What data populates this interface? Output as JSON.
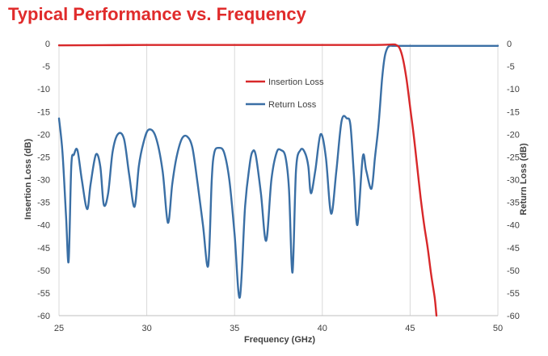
{
  "chart_data": {
    "type": "line",
    "title": "Typical Performance vs. Frequency",
    "xlabel": "Frequency (GHz)",
    "ylabel_left": "Insertion Loss (dB)",
    "ylabel_right": "Return Loss (dB)",
    "xlim": [
      25,
      50
    ],
    "ylim": [
      -60,
      0
    ],
    "x_ticks": [
      "25",
      "30",
      "35",
      "40",
      "45",
      "50"
    ],
    "y_ticks": [
      "0",
      "-5",
      "-10",
      "-15",
      "-20",
      "-25",
      "-30",
      "-35",
      "-40",
      "-45",
      "-50",
      "-55",
      "-60"
    ],
    "grid": "vertical",
    "legend_position": "upper-middle",
    "series": [
      {
        "name": "Insertion Loss",
        "color": "#d8282a",
        "axis": "left",
        "x": [
          25.0,
          30.0,
          35.0,
          40.0,
          43.0,
          44.0,
          44.2,
          44.4,
          44.6,
          44.8,
          45.0,
          45.2,
          45.4,
          45.6,
          45.8,
          46.0,
          46.2,
          46.4,
          46.5
        ],
        "y": [
          -0.4,
          -0.3,
          -0.3,
          -0.3,
          -0.3,
          -0.2,
          -0.3,
          -1.0,
          -3.5,
          -8.0,
          -14.0,
          -20.0,
          -27.0,
          -34.0,
          -40.0,
          -45.0,
          -51.0,
          -56.0,
          -60.0
        ]
      },
      {
        "name": "Return Loss",
        "color": "#3a6fa5",
        "axis": "right",
        "x": [
          25.0,
          25.2,
          25.4,
          25.55,
          25.7,
          25.85,
          26.05,
          26.3,
          26.6,
          26.8,
          27.1,
          27.35,
          27.55,
          27.8,
          28.05,
          28.35,
          28.7,
          29.0,
          29.3,
          29.55,
          29.8,
          30.1,
          30.5,
          30.9,
          31.2,
          31.45,
          31.7,
          32.0,
          32.3,
          32.6,
          32.9,
          33.2,
          33.5,
          33.7,
          33.85,
          34.1,
          34.4,
          34.7,
          35.0,
          35.3,
          35.6,
          35.85,
          36.0,
          36.2,
          36.5,
          36.8,
          37.1,
          37.4,
          37.65,
          37.9,
          38.1,
          38.3,
          38.5,
          38.75,
          39.0,
          39.2,
          39.35,
          39.6,
          39.9,
          40.2,
          40.5,
          40.8,
          41.1,
          41.4,
          41.6,
          41.8,
          42.0,
          42.3,
          42.5,
          42.8,
          43.0,
          43.2,
          43.4,
          43.55,
          43.7,
          43.85,
          44.0,
          44.2,
          44.4,
          44.6,
          44.8,
          45.0,
          45.5,
          46.0,
          47.0,
          48.0,
          49.0,
          50.0
        ],
        "y": [
          -16.5,
          -24.0,
          -38.0,
          -48.0,
          -27.0,
          -24.5,
          -23.5,
          -30.0,
          -36.5,
          -31.0,
          -24.5,
          -27.0,
          -35.5,
          -33.0,
          -24.0,
          -20.0,
          -21.0,
          -29.0,
          -36.0,
          -27.0,
          -22.0,
          -19.0,
          -20.5,
          -28.0,
          -39.5,
          -31.0,
          -25.0,
          -21.0,
          -20.5,
          -23.0,
          -31.0,
          -40.0,
          -49.0,
          -30.0,
          -24.0,
          -23.0,
          -24.0,
          -30.0,
          -42.0,
          -56.0,
          -36.0,
          -27.0,
          -24.0,
          -24.5,
          -33.0,
          -43.5,
          -30.0,
          -24.0,
          -23.5,
          -25.0,
          -32.0,
          -50.5,
          -28.0,
          -23.5,
          -24.0,
          -27.0,
          -33.0,
          -28.0,
          -20.0,
          -25.0,
          -37.5,
          -28.0,
          -17.0,
          -16.5,
          -18.0,
          -29.0,
          -40.0,
          -25.0,
          -28.0,
          -32.0,
          -25.0,
          -18.0,
          -8.0,
          -3.0,
          -1.0,
          -0.5,
          -0.5,
          -0.5,
          -0.5,
          -0.5,
          -0.5,
          -0.5,
          -0.5,
          -0.5,
          -0.5,
          -0.5,
          -0.5,
          -0.5
        ]
      }
    ]
  }
}
